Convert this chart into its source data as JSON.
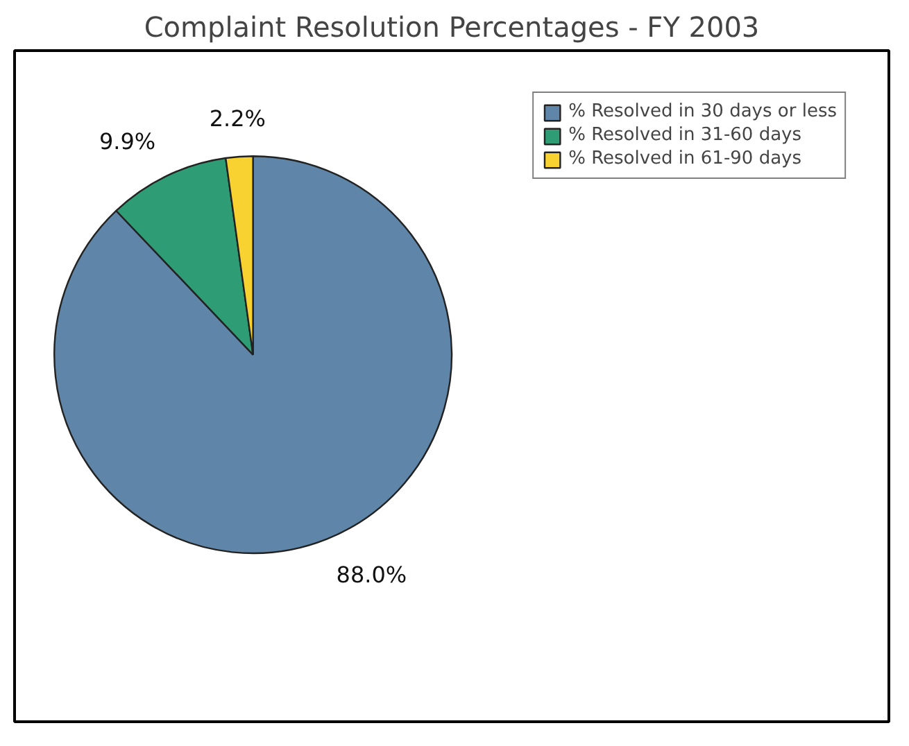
{
  "chart_data": {
    "type": "pie",
    "title": "Complaint Resolution Percentages - FY 2003",
    "categories": [
      "% Resolved in 30 days or less",
      "% Resolved in 31-60 days",
      "% Resolved in 61-90 days"
    ],
    "values": [
      88.0,
      9.9,
      2.2
    ],
    "colors": [
      "#5f86a8",
      "#2e9c74",
      "#f7d230"
    ],
    "value_labels": [
      "88.0%",
      "9.9%",
      "2.2%"
    ],
    "legend": "top right"
  }
}
